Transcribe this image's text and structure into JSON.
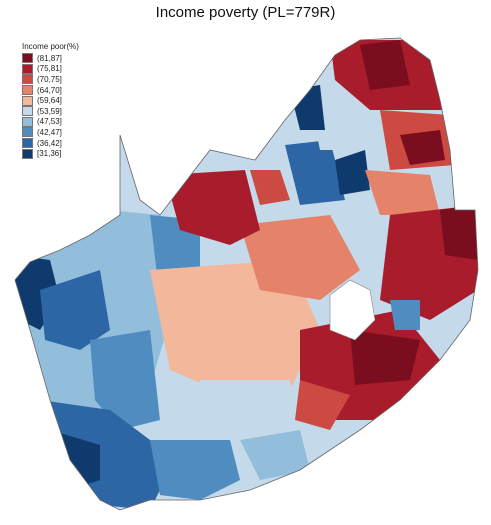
{
  "title": "Income poverty (PL=779R)",
  "legend": {
    "title": "Income poor(%)",
    "items": [
      {
        "label": "(81,87]",
        "color": "#7a0d1e"
      },
      {
        "label": "(75,81]",
        "color": "#a81c2c"
      },
      {
        "label": "(70,75]",
        "color": "#cc4a42"
      },
      {
        "label": "(64,70]",
        "color": "#e5826a"
      },
      {
        "label": "(59,64]",
        "color": "#f3b79c"
      },
      {
        "label": "(53,59]",
        "color": "#c4d9ea"
      },
      {
        "label": "(47,53]",
        "color": "#93bedb"
      },
      {
        "label": "(42,47]",
        "color": "#4f8cc0"
      },
      {
        "label": "(36,42]",
        "color": "#2c66a5"
      },
      {
        "label": "[31,36]",
        "color": "#0e3a6e"
      }
    ]
  }
}
